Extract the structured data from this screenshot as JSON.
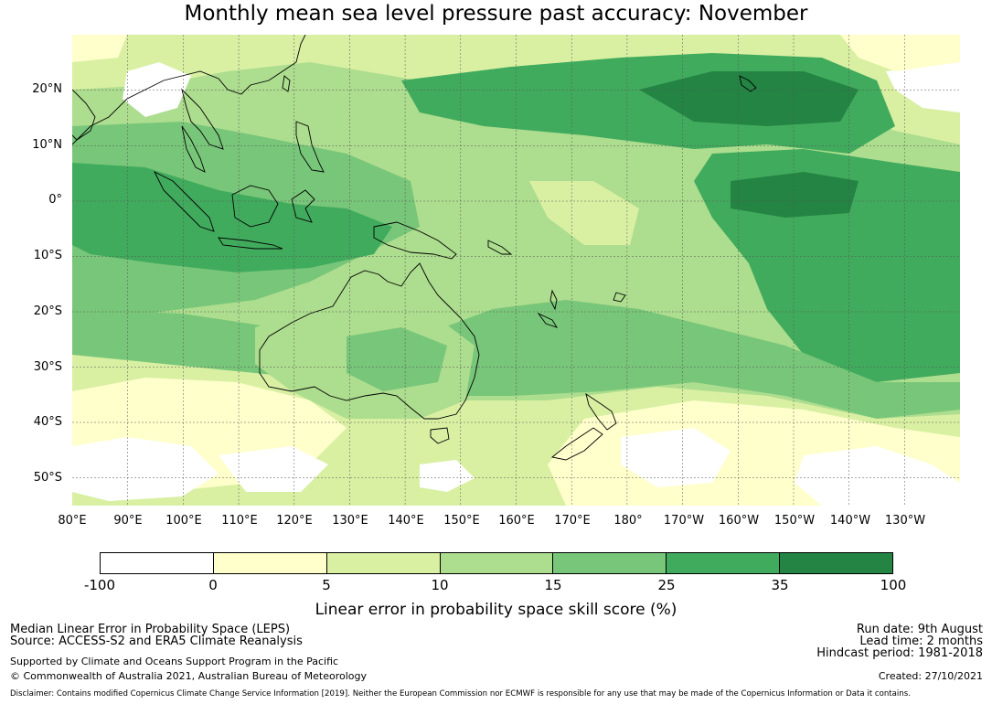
{
  "title": "Monthly mean sea level pressure past accuracy: November",
  "map": {
    "lat_labels": [
      "20°N",
      "10°N",
      "0°",
      "10°S",
      "20°S",
      "30°S",
      "40°S",
      "50°S"
    ],
    "lon_labels": [
      "80°E",
      "90°E",
      "100°E",
      "110°E",
      "120°E",
      "130°E",
      "140°E",
      "150°E",
      "160°E",
      "170°E",
      "180°",
      "170°W",
      "160°W",
      "150°W",
      "140°W",
      "130°W"
    ],
    "lat_range": [
      -55,
      30
    ],
    "lon_range": [
      80,
      240
    ]
  },
  "colorbar": {
    "ticks": [
      "-100",
      "0",
      "5",
      "10",
      "15",
      "25",
      "35",
      "100"
    ],
    "colors": [
      "#ffffff",
      "#ffffcc",
      "#d9f0a3",
      "#addd8e",
      "#78c679",
      "#41ab5d",
      "#238443"
    ],
    "label": "Linear error in probability space skill score (%)"
  },
  "footer": {
    "left_line1": "Median Linear Error in Probability Space (LEPS)",
    "left_line2": "Source: ACCESS-S2 and ERA5 Climate Reanalysis",
    "left_line3": "Supported by Climate and Oceans Support Program in the Pacific",
    "left_line4": "© Commonwealth of Australia 2021, Australian Bureau of Meteorology",
    "right_line1": "Run date: 9th August",
    "right_line2": "Lead time: 2 months",
    "right_line3": "Hindcast period: 1981-2018",
    "right_line4": "Created: 27/10/2021",
    "disclaimer": "Disclaimer: Contains modified Copernicus Climate Change Service Information [2019]. Neither the European Commission nor ECMWF is responsible for any use that may be made of the Copernicus Information or Data it contains."
  }
}
